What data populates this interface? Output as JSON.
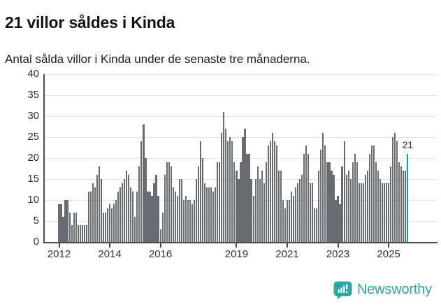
{
  "header": {
    "title": "21 villor såldes i Kinda",
    "subtitle": "Antal sålda villor i Kinda under de senaste tre månaderna."
  },
  "chart_data": {
    "type": "bar",
    "title": "21 villor såldes i Kinda",
    "subtitle": "Antal sålda villor i Kinda under de senaste tre månaderna.",
    "ylim": [
      0,
      40
    ],
    "yticks": [
      0,
      5,
      10,
      15,
      20,
      25,
      30,
      35,
      40
    ],
    "grid": "horizontal",
    "x_axis": {
      "tick_labels": [
        "2012",
        "2014",
        "2016",
        "2019",
        "2021",
        "2023",
        "2025"
      ],
      "tick_indices": [
        0,
        24,
        48,
        84,
        108,
        132,
        156
      ]
    },
    "values": [
      9,
      9,
      6,
      10,
      10,
      7,
      4,
      7,
      7,
      4,
      4,
      4,
      4,
      4,
      12,
      12,
      14,
      13,
      16,
      18,
      15,
      7,
      7,
      8,
      9,
      8,
      9,
      10,
      12,
      13,
      14,
      15,
      17,
      16,
      13,
      12,
      6,
      12,
      18,
      24,
      28,
      20,
      12,
      12,
      11,
      14,
      16,
      11,
      3,
      7,
      16,
      19,
      19,
      18,
      13,
      12,
      11,
      15,
      15,
      10,
      11,
      10,
      10,
      9,
      10,
      15,
      18,
      24,
      20,
      14,
      13,
      13,
      13,
      12,
      13,
      19,
      19,
      26,
      31,
      27,
      24,
      25,
      24,
      19,
      17,
      15,
      19,
      25,
      27,
      21,
      21,
      15,
      11,
      15,
      18,
      15,
      17,
      14,
      19,
      23,
      24,
      26,
      24,
      23,
      17,
      17,
      10,
      8,
      10,
      10,
      12,
      11,
      13,
      14,
      15,
      16,
      21,
      23,
      21,
      14,
      14,
      8,
      8,
      17,
      22,
      26,
      23,
      19,
      19,
      17,
      16,
      10,
      11,
      9,
      18,
      24,
      16,
      17,
      15,
      19,
      21,
      19,
      14,
      14,
      14,
      16,
      17,
      21,
      23,
      23,
      19,
      17,
      15,
      14,
      14,
      14,
      14,
      18,
      25,
      26,
      24,
      19,
      18,
      17,
      17,
      21
    ],
    "highlight": {
      "index": 165,
      "value": 21,
      "label": "21"
    },
    "colors": {
      "bar": "#6a6a72",
      "highlight": "#00a2a2",
      "grid": "#e2e2e2",
      "axis": "#4d4d4d",
      "text": "#333333"
    }
  },
  "footer": {
    "brand": "Newsworthy",
    "icon": "newsworthy-speech-bubble-chart-icon"
  }
}
